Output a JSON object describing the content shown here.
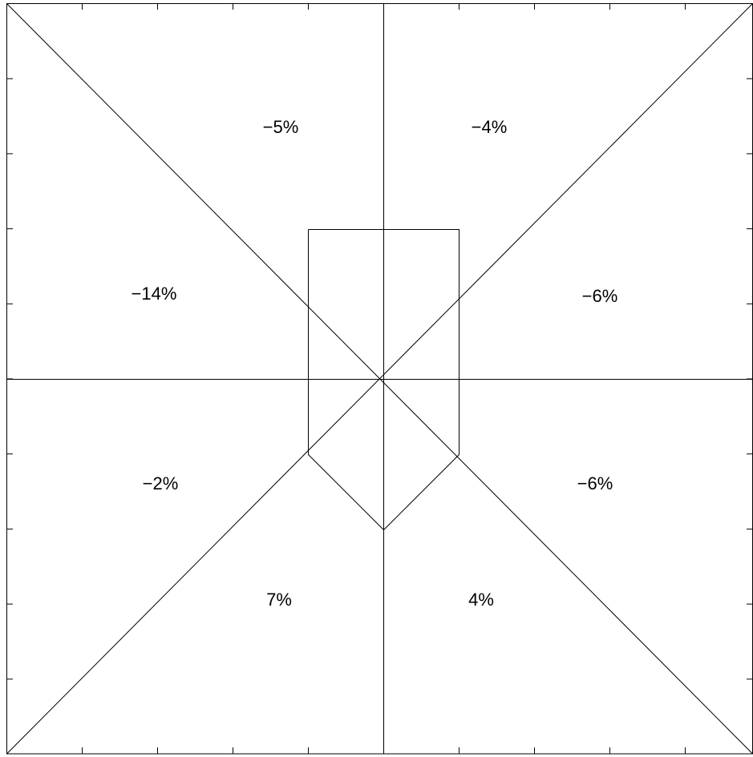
{
  "regions": [
    {
      "label": "−5%"
    },
    {
      "label": "−4%"
    },
    {
      "label": "−14%"
    },
    {
      "label": "−6%"
    },
    {
      "label": "−2%"
    },
    {
      "label": "−6%"
    },
    {
      "label": "7%"
    },
    {
      "label": "4%"
    }
  ]
}
